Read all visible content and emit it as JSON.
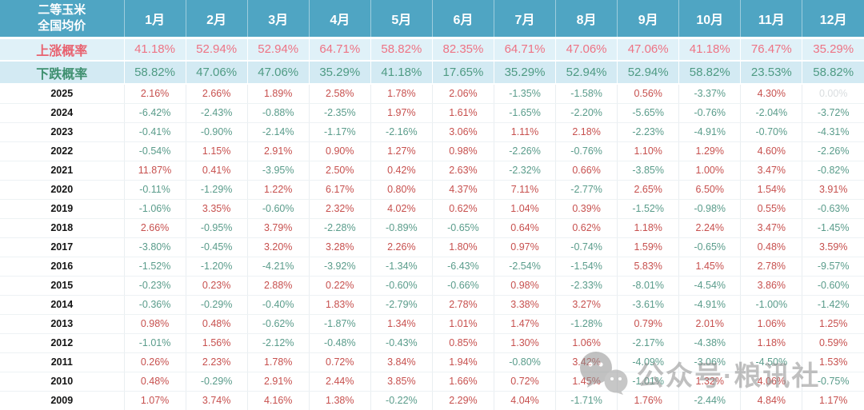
{
  "chart_data": {
    "type": "table",
    "title_lines": [
      "二等玉米",
      "全国均价"
    ],
    "months": [
      "1月",
      "2月",
      "3月",
      "4月",
      "5月",
      "6月",
      "7月",
      "8月",
      "9月",
      "10月",
      "11月",
      "12月"
    ],
    "rise_label": "上涨概率",
    "rise_probability": [
      "41.18%",
      "52.94%",
      "52.94%",
      "64.71%",
      "58.82%",
      "82.35%",
      "64.71%",
      "47.06%",
      "47.06%",
      "41.18%",
      "76.47%",
      "35.29%"
    ],
    "fall_label": "下跌概率",
    "fall_probability": [
      "58.82%",
      "47.06%",
      "47.06%",
      "35.29%",
      "41.18%",
      "17.65%",
      "35.29%",
      "52.94%",
      "52.94%",
      "58.82%",
      "23.53%",
      "58.82%"
    ],
    "rows": [
      {
        "year": "2025",
        "values": [
          "2.16%",
          "2.66%",
          "1.89%",
          "2.58%",
          "1.78%",
          "2.06%",
          "-1.35%",
          "-1.58%",
          "0.56%",
          "-3.37%",
          "4.30%",
          "0.00%"
        ]
      },
      {
        "year": "2024",
        "values": [
          "-6.42%",
          "-2.43%",
          "-0.88%",
          "-2.35%",
          "1.97%",
          "1.61%",
          "-1.65%",
          "-2.20%",
          "-5.65%",
          "-0.76%",
          "-2.04%",
          "-3.72%"
        ]
      },
      {
        "year": "2023",
        "values": [
          "-0.41%",
          "-0.90%",
          "-2.14%",
          "-1.17%",
          "-2.16%",
          "3.06%",
          "1.11%",
          "2.18%",
          "-2.23%",
          "-4.91%",
          "-0.70%",
          "-4.31%"
        ]
      },
      {
        "year": "2022",
        "values": [
          "-0.54%",
          "1.15%",
          "2.91%",
          "0.90%",
          "1.27%",
          "0.98%",
          "-2.26%",
          "-0.76%",
          "1.10%",
          "1.29%",
          "4.60%",
          "-2.26%"
        ]
      },
      {
        "year": "2021",
        "values": [
          "11.87%",
          "0.41%",
          "-3.95%",
          "2.50%",
          "0.42%",
          "2.63%",
          "-2.32%",
          "0.66%",
          "-3.85%",
          "1.00%",
          "3.47%",
          "-0.82%"
        ]
      },
      {
        "year": "2020",
        "values": [
          "-0.11%",
          "-1.29%",
          "1.22%",
          "6.17%",
          "0.80%",
          "4.37%",
          "7.11%",
          "-2.77%",
          "2.65%",
          "6.50%",
          "1.54%",
          "3.91%"
        ]
      },
      {
        "year": "2019",
        "values": [
          "-1.06%",
          "3.35%",
          "-0.60%",
          "2.32%",
          "4.02%",
          "0.62%",
          "1.04%",
          "0.39%",
          "-1.52%",
          "-0.98%",
          "0.55%",
          "-0.63%"
        ]
      },
      {
        "year": "2018",
        "values": [
          "2.66%",
          "-0.95%",
          "3.79%",
          "-2.28%",
          "-0.89%",
          "-0.65%",
          "0.64%",
          "0.62%",
          "1.18%",
          "2.24%",
          "3.47%",
          "-1.45%"
        ]
      },
      {
        "year": "2017",
        "values": [
          "-3.80%",
          "-0.45%",
          "3.20%",
          "3.28%",
          "2.26%",
          "1.80%",
          "0.97%",
          "-0.74%",
          "1.59%",
          "-0.65%",
          "0.48%",
          "3.59%"
        ]
      },
      {
        "year": "2016",
        "values": [
          "-1.52%",
          "-1.20%",
          "-4.21%",
          "-3.92%",
          "-1.34%",
          "-6.43%",
          "-2.54%",
          "-1.54%",
          "5.83%",
          "1.45%",
          "2.78%",
          "-9.57%"
        ]
      },
      {
        "year": "2015",
        "values": [
          "-0.23%",
          "0.23%",
          "2.88%",
          "0.22%",
          "-0.60%",
          "-0.66%",
          "0.98%",
          "-2.33%",
          "-8.01%",
          "-4.54%",
          "3.86%",
          "-0.60%"
        ]
      },
      {
        "year": "2014",
        "values": [
          "-0.36%",
          "-0.29%",
          "-0.40%",
          "1.83%",
          "-2.79%",
          "2.78%",
          "3.38%",
          "3.27%",
          "-3.61%",
          "-4.91%",
          "-1.00%",
          "-1.42%"
        ]
      },
      {
        "year": "2013",
        "values": [
          "0.98%",
          "0.48%",
          "-0.62%",
          "-1.87%",
          "1.34%",
          "1.01%",
          "1.47%",
          "-1.28%",
          "0.79%",
          "2.01%",
          "1.06%",
          "1.25%"
        ]
      },
      {
        "year": "2012",
        "values": [
          "-1.01%",
          "1.56%",
          "-2.12%",
          "-0.48%",
          "-0.43%",
          "0.85%",
          "1.30%",
          "1.06%",
          "-2.17%",
          "-4.38%",
          "1.18%",
          "0.59%"
        ]
      },
      {
        "year": "2011",
        "values": [
          "0.26%",
          "2.23%",
          "1.78%",
          "0.72%",
          "3.84%",
          "1.94%",
          "-0.80%",
          "3.42%",
          "-4.09%",
          "-3.06%",
          "-4.50%",
          "1.53%"
        ]
      },
      {
        "year": "2010",
        "values": [
          "0.48%",
          "-0.29%",
          "2.91%",
          "2.44%",
          "3.85%",
          "1.66%",
          "0.72%",
          "1.45%",
          "-1.01%",
          "1.32%",
          "4.06%",
          "-0.75%"
        ]
      },
      {
        "year": "2009",
        "values": [
          "1.07%",
          "3.74%",
          "4.16%",
          "1.38%",
          "-0.22%",
          "2.29%",
          "4.04%",
          "-1.71%",
          "1.76%",
          "-2.44%",
          "4.84%",
          "1.17%"
        ]
      }
    ]
  },
  "watermark": {
    "icon": "wechat-icon",
    "text": "公众号·粮讯社"
  },
  "colors": {
    "header_bg": "#4fa5c3",
    "rise_row_bg": "#e0f1f8",
    "fall_row_bg": "#d3eaf3",
    "rise_text": "#ee7384",
    "fall_text": "#4f9b84",
    "positive_value": "#c7504e",
    "negative_value": "#5a9c8b",
    "zero_value": "#d9dddf"
  }
}
